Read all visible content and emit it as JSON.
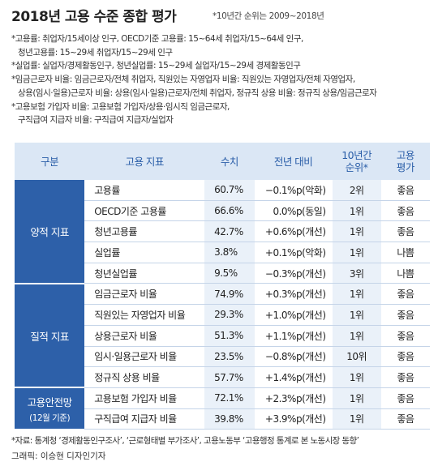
{
  "header": {
    "title": "2018년 고용 수준 종합 평가",
    "note": "*10년간 순위는 2009~2018년"
  },
  "notes": [
    "*고용률: 취업자/15세이상 인구, OECD기준 고용률: 15~64세 취업자/15~64세 인구,",
    "청년고용률: 15~29세 취업자/15~29세 인구",
    "*실업률: 실업자/경제활동인구, 청년실업률: 15~29세 실업자/15~29세 경제활동인구",
    "*임금근로자 비율: 임금근로자/전체 취업자, 직원있는 자영업자 비율: 직원있는 자영업자/전체 자영업자,",
    "상용(임시·일용)근로자 비율: 상용(임시·일용)근로자/전체 취업자, 정규직 상용 비율: 정규직 상용/임금근로자",
    "*고용보험 가입자 비율: 고용보험 가입자/상용·임시직 임금근로자,",
    "구직급여 지급자 비율: 구직급여 지급자/실업자"
  ],
  "table": {
    "columns": [
      "구분",
      "고용 지표",
      "수치",
      "전년 대비",
      "10년간\n순위*",
      "고용\n평가"
    ],
    "groups": [
      {
        "label": "양적 지표",
        "rows": [
          [
            "고용률",
            "60.7%",
            "−0.1%p(악화)",
            "2위",
            "좋음"
          ],
          [
            "OECD기준 고용률",
            "66.6%",
            "0.0%p(동일)",
            "1위",
            "좋음"
          ],
          [
            "청년고용률",
            "42.7%",
            "+0.6%p(개선)",
            "1위",
            "좋음"
          ],
          [
            "실업률",
            "3.8%",
            "+0.1%p(악화)",
            "1위",
            "나쁨"
          ],
          [
            "청년실업률",
            "9.5%",
            "−0.3%p(개선)",
            "3위",
            "나쁨"
          ]
        ]
      },
      {
        "label": "질적 지표",
        "rows": [
          [
            "임금근로자 비율",
            "74.9%",
            "+0.3%p(개선)",
            "1위",
            "좋음"
          ],
          [
            "직원있는 자영업자 비율",
            "29.3%",
            "+1.0%p(개선)",
            "1위",
            "좋음"
          ],
          [
            "상용근로자 비율",
            "51.3%",
            "+1.1%p(개선)",
            "1위",
            "좋음"
          ],
          [
            "임시·일용근로자 비율",
            "23.5%",
            "−0.8%p(개선)",
            "10위",
            "좋음"
          ],
          [
            "정규직 상용 비율",
            "57.7%",
            "+1.4%p(개선)",
            "1위",
            "좋음"
          ]
        ]
      },
      {
        "label": "고용안전망",
        "sublabel": "(12월 기준)",
        "rows": [
          [
            "고용보험 가입자 비율",
            "72.1%",
            "+2.3%p(개선)",
            "1위",
            "좋음"
          ],
          [
            "구직급여 지급자 비율",
            "39.8%",
            "+3.9%p(개선)",
            "1위",
            "좋음"
          ]
        ]
      }
    ]
  },
  "footer": {
    "source": "*자료: 통계청 ‘경제활동인구조사’, ‘근로형태별 부가조사’, 고용노동부 ‘고용행정 통계로 본 노동시장 동향’",
    "credit": "그래픽: 이승현 디자인기자"
  }
}
